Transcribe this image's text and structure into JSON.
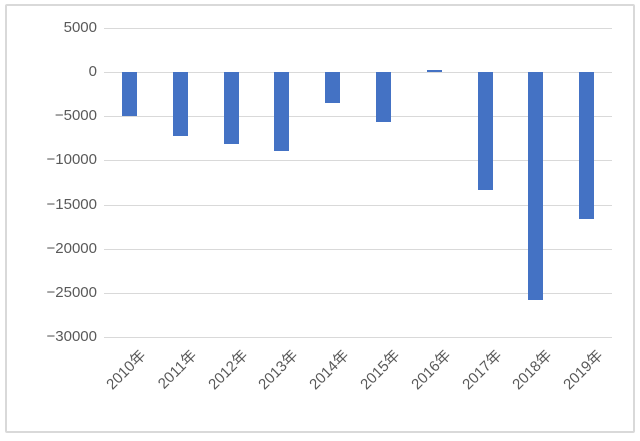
{
  "chart_data": {
    "type": "bar",
    "title": "",
    "xlabel": "",
    "ylabel": "",
    "categories": [
      "2010年",
      "2011年",
      "2012年",
      "2013年",
      "2014年",
      "2015年",
      "2016年",
      "2017年",
      "2018年",
      "2019年"
    ],
    "values": [
      -5000,
      -7300,
      -8200,
      -9000,
      -3500,
      -5700,
      200,
      -13400,
      -25800,
      -16600
    ],
    "ylim": [
      -30000,
      5000
    ],
    "ytick_step": 5000,
    "ytick_labels": [
      "5000",
      "0",
      "−5000",
      "−10000",
      "−15000",
      "−20000",
      "−25000",
      "−30000"
    ],
    "grid": true,
    "legend": false,
    "colors": {
      "bar": "#4472c4",
      "gridline": "#d9d9d9",
      "axis_text": "#595959",
      "frame_border": "#d9d9d9",
      "background": "#ffffff"
    }
  }
}
